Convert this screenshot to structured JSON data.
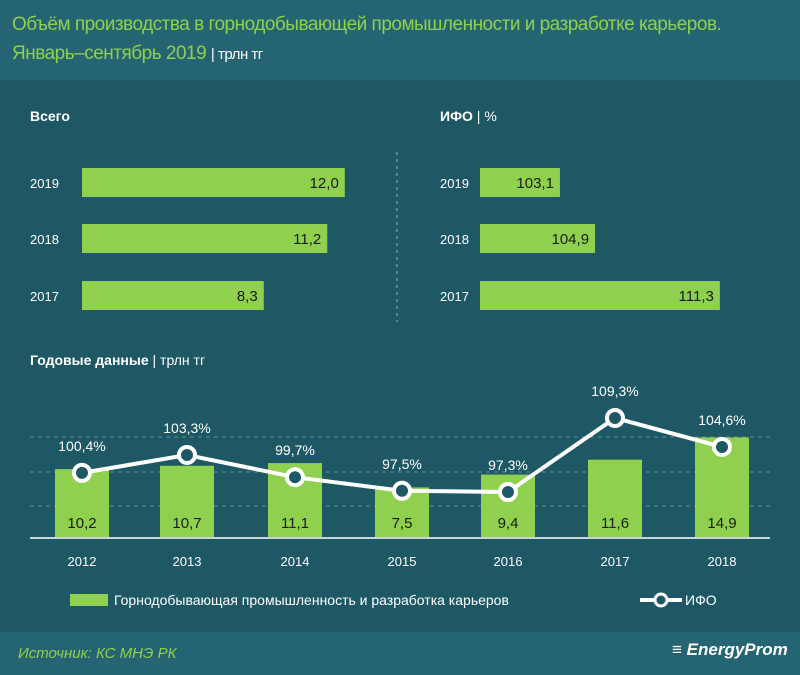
{
  "title": "Объём производства в горнодобывающей промышленности и разработке карьеров. Январь–сентябрь 2019",
  "title_unit": "| трлн тг",
  "source": "Источник: КС МНЭ РК",
  "logo": "EnergyProm",
  "colors": {
    "bar": "#8fd14f",
    "background": "#1f5865",
    "line": "#ffffff"
  },
  "chart_data": [
    {
      "type": "bar",
      "orientation": "horizontal",
      "title": "Всего",
      "unit": "",
      "categories": [
        "2019",
        "2018",
        "2017"
      ],
      "values": [
        12.0,
        11.2,
        8.3
      ],
      "labels": [
        "12,0",
        "11,2",
        "8,3"
      ]
    },
    {
      "type": "bar",
      "orientation": "horizontal",
      "title": "ИФО",
      "unit": "| %",
      "categories": [
        "2019",
        "2018",
        "2017"
      ],
      "values": [
        103.1,
        104.9,
        111.3
      ],
      "labels": [
        "103,1",
        "104,9",
        "111,3"
      ]
    },
    {
      "type": "bar+line",
      "title": "Годовые данные",
      "unit": "| трлн тг",
      "categories": [
        "2012",
        "2013",
        "2014",
        "2015",
        "2016",
        "2017",
        "2018"
      ],
      "series": [
        {
          "name": "Горнодобывающая промышленность и разработка карьеров",
          "type": "bar",
          "values": [
            10.2,
            10.7,
            11.1,
            7.5,
            9.4,
            11.6,
            14.9
          ],
          "labels": [
            "10,2",
            "10,7",
            "11,1",
            "7,5",
            "9,4",
            "11,6",
            "14,9"
          ]
        },
        {
          "name": "ИФО",
          "type": "line",
          "values": [
            100.4,
            103.3,
            99.7,
            97.5,
            97.3,
            109.3,
            104.6
          ],
          "labels": [
            "100,4%",
            "103,3%",
            "99,7%",
            "97,5%",
            "97,3%",
            "109,3%",
            "104,6%"
          ]
        }
      ],
      "grid": true,
      "legend": "bottom"
    }
  ]
}
